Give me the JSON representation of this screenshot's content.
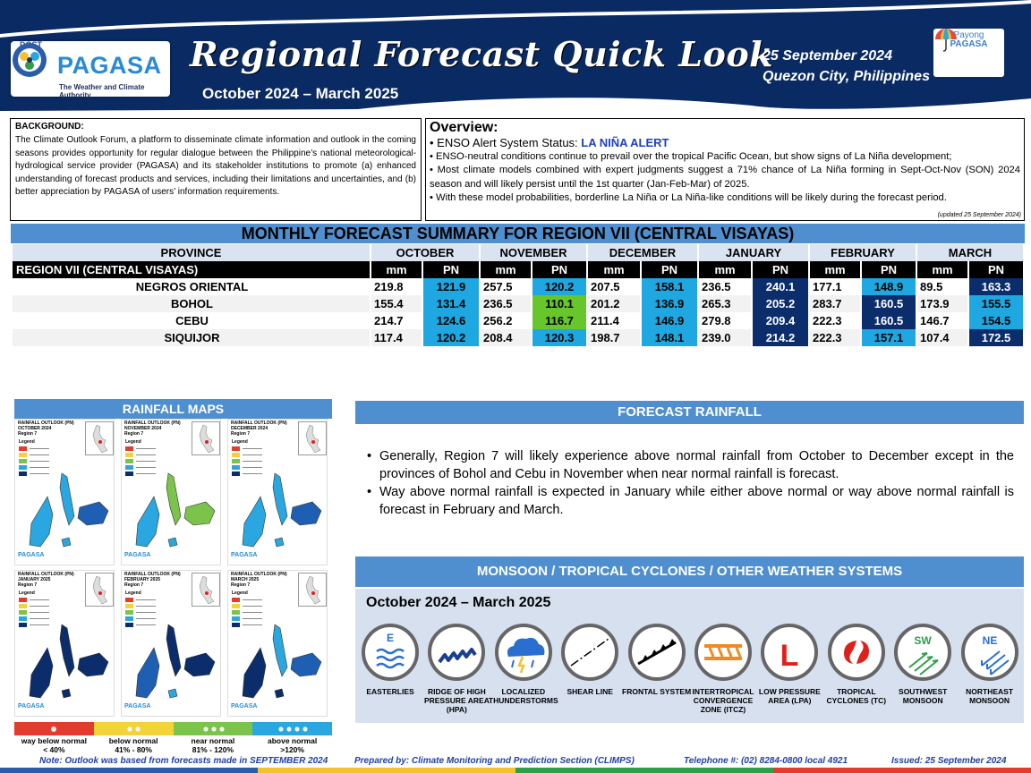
{
  "header": {
    "dost_label": "DOST",
    "agency_name": "PAGASA",
    "agency_tagline": "The Weather and Climate Authority",
    "title": "Regional Forecast Quick Look",
    "period": "October 2024 – March 2025",
    "date": "25 September 2024",
    "location": "Quezon City, Philippines",
    "payong_line1": "Payong",
    "payong_line2": "PAGASA"
  },
  "background": {
    "title": "BACKGROUND:",
    "text": "The Climate Outlook Forum, a platform to disseminate climate information and outlook in the coming seasons provides opportunity for regular dialogue between the Philippine’s national meteorological-hydrological service provider (PAGASA) and its stakeholder institutions to promote (a) enhanced understanding of forecast products and services, including their limitations and uncertainties, and (b) better appreciation by PAGASA of users’ information requirements."
  },
  "overview": {
    "title": "Overview:",
    "enso_label": "• ENSO Alert System Status: ",
    "enso_status": "LA NIÑA ALERT",
    "bullet1": "• ENSO-neutral conditions continue to prevail over the tropical Pacific Ocean, but show signs of La Niña development;",
    "bullet2": "• Most climate models combined with expert judgments suggest a 71% chance of La Niña forming in Sept-Oct-Nov (SON) 2024 season and will likely persist until the 1st quarter (Jan-Feb-Mar) of 2025.",
    "bullet3": "• With these model probabilities, borderline La Niña or La Niña-like conditions will be likely during the forecast period.",
    "updated": "(updated 25 September 2024)"
  },
  "summary": {
    "title": "MONTHLY FORECAST SUMMARY FOR REGION VII (CENTRAL VISAYAS)",
    "province_header": "PROVINCE",
    "region_label": "REGION VII (CENTRAL VISAYAS)",
    "mm_label": "mm",
    "pn_label": "PN",
    "months": [
      "OCTOBER",
      "NOVEMBER",
      "DECEMBER",
      "JANUARY",
      "FEBRUARY",
      "MARCH"
    ],
    "rows": [
      {
        "province": "NEGROS ORIENTAL",
        "mm": [
          "219.8",
          "257.5",
          "207.5",
          "236.5",
          "177.1",
          "89.5"
        ],
        "pn": [
          "121.9",
          "120.2",
          "158.1",
          "240.1",
          "148.9",
          "163.3"
        ],
        "cls": [
          "an",
          "an",
          "an",
          "wan",
          "an",
          "wan"
        ]
      },
      {
        "province": "BOHOL",
        "mm": [
          "155.4",
          "236.5",
          "201.2",
          "265.3",
          "283.7",
          "173.9"
        ],
        "pn": [
          "131.4",
          "110.1",
          "136.9",
          "205.2",
          "160.5",
          "155.5"
        ],
        "cls": [
          "an",
          "nn",
          "an",
          "wan",
          "wan",
          "an"
        ]
      },
      {
        "province": "CEBU",
        "mm": [
          "214.7",
          "256.2",
          "211.4",
          "279.8",
          "222.3",
          "146.7"
        ],
        "pn": [
          "124.6",
          "116.7",
          "146.9",
          "209.4",
          "160.5",
          "154.5"
        ],
        "cls": [
          "an",
          "nn",
          "an",
          "wan",
          "wan",
          "an"
        ]
      },
      {
        "province": "SIQUIJOR",
        "mm": [
          "117.4",
          "208.4",
          "198.7",
          "239.0",
          "222.3",
          "107.4"
        ],
        "pn": [
          "120.2",
          "120.3",
          "148.1",
          "214.2",
          "157.1",
          "172.5"
        ],
        "cls": [
          "an",
          "an",
          "an",
          "wan",
          "an",
          "wan"
        ]
      }
    ]
  },
  "rainfall_maps": {
    "title": "RAINFALL MAPS",
    "panels": [
      {
        "line1": "RAINFALL OUTLOOK (PN)",
        "line2": "OCTOBER 2024",
        "line3": "Region 7"
      },
      {
        "line1": "RAINFALL OUTLOOK (PN)",
        "line2": "NOVEMBER 2024",
        "line3": "Region 7"
      },
      {
        "line1": "RAINFALL OUTLOOK (PN)",
        "line2": "DECEMBER 2024",
        "line3": "Region 7"
      },
      {
        "line1": "RAINFALL OUTLOOK (PN)",
        "line2": "JANUARY 2025",
        "line3": "Region 7"
      },
      {
        "line1": "RAINFALL OUTLOOK (PN)",
        "line2": "FEBRUARY 2025",
        "line3": "Region 7"
      },
      {
        "line1": "RAINFALL OUTLOOK (PN)",
        "line2": "MARCH 2025",
        "line3": "Region 7"
      }
    ],
    "legend_label": "Legend",
    "categories": [
      {
        "line1": "way below normal",
        "line2": "< 40%",
        "color": "#e33b2e"
      },
      {
        "line1": "below normal",
        "line2": "41%  -  80%",
        "color": "#f2d43a"
      },
      {
        "line1": "near normal",
        "line2": "81% - 120%",
        "color": "#7bc34a"
      },
      {
        "line1": "above normal",
        "line2": ">120%",
        "color": "#2aa7e0"
      }
    ]
  },
  "forecast_rainfall": {
    "title": "FORECAST RAINFALL",
    "bullet1": "Generally, Region 7 will likely experience above normal rainfall from October to December except in the provinces of Bohol and Cebu in November when near normal rainfall is forecast.",
    "bullet2": "Way above normal rainfall is expected in January while either above normal or way above normal rainfall is forecast in February and March."
  },
  "monsoon": {
    "title": "MONSOON / TROPICAL CYCLONES / OTHER WEATHER SYSTEMS",
    "period": "October 2024 – March 2025",
    "systems": [
      {
        "label": "EASTERLIES",
        "icon": "easterlies-icon"
      },
      {
        "label": "RIDGE OF HIGH PRESSURE AREA (HPA)",
        "icon": "ridge-icon"
      },
      {
        "label": "LOCALIZED THUNDERSTORMS",
        "icon": "thunderstorm-icon"
      },
      {
        "label": "SHEAR LINE",
        "icon": "shear-line-icon"
      },
      {
        "label": "FRONTAL SYSTEM",
        "icon": "frontal-system-icon"
      },
      {
        "label": "INTERTROPICAL CONVERGENCE ZONE (ITCZ)",
        "icon": "itcz-icon"
      },
      {
        "label": "LOW PRESSURE AREA (LPA)",
        "icon": "lpa-icon"
      },
      {
        "label": "TROPICAL CYCLONES (TC)",
        "icon": "tropical-cyclone-icon"
      },
      {
        "label": "SOUTHWEST MONSOON",
        "icon": "southwest-monsoon-icon"
      },
      {
        "label": "NORTHEAST MONSOON",
        "icon": "northeast-monsoon-icon"
      }
    ],
    "easterlies_letter": "E",
    "lpa_letter": "L",
    "sw_letters": "SW",
    "ne_letters": "NE"
  },
  "footer": {
    "note": "Note: Outlook was based from forecasts made in SEPTEMBER 2024",
    "prepared": "Prepared by: Climate Monitoring and Prediction Section (CLIMPS)",
    "telephone": "Telephone #: (02) 8284-0800 local 4921",
    "issued": "Issued: 25 September 2024"
  },
  "colors": {
    "header_navy": "#0a2a63",
    "section_blue": "#4f8fcf",
    "above_normal": "#1ea7e0",
    "near_normal": "#66c62c",
    "way_above_normal": "#0c2d6b"
  }
}
